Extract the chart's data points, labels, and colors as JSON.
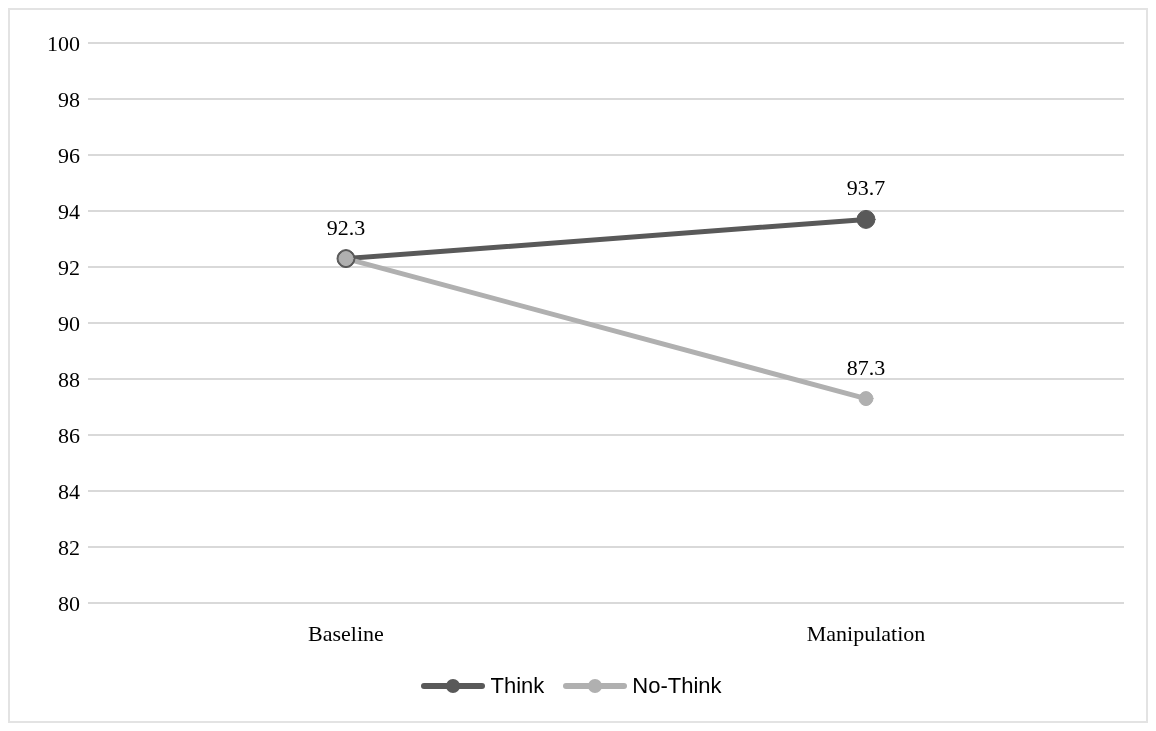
{
  "chart_data": {
    "type": "line",
    "categories": [
      "Baseline",
      "Manipulation"
    ],
    "series": [
      {
        "name": "Think",
        "color": "#595959",
        "values": [
          92.3,
          93.7
        ],
        "value_labels": [
          null,
          "93.7"
        ]
      },
      {
        "name": "No-Think",
        "color": "#b0b0b0",
        "values": [
          92.3,
          87.3
        ],
        "value_labels": [
          "92.3",
          "87.3"
        ]
      }
    ],
    "ylim": [
      80,
      100
    ],
    "yticks": [
      80,
      82,
      84,
      86,
      88,
      90,
      92,
      94,
      96,
      98,
      100
    ],
    "grid": "y",
    "legend": "bottom",
    "marker": "circle",
    "line_style": "solid"
  }
}
